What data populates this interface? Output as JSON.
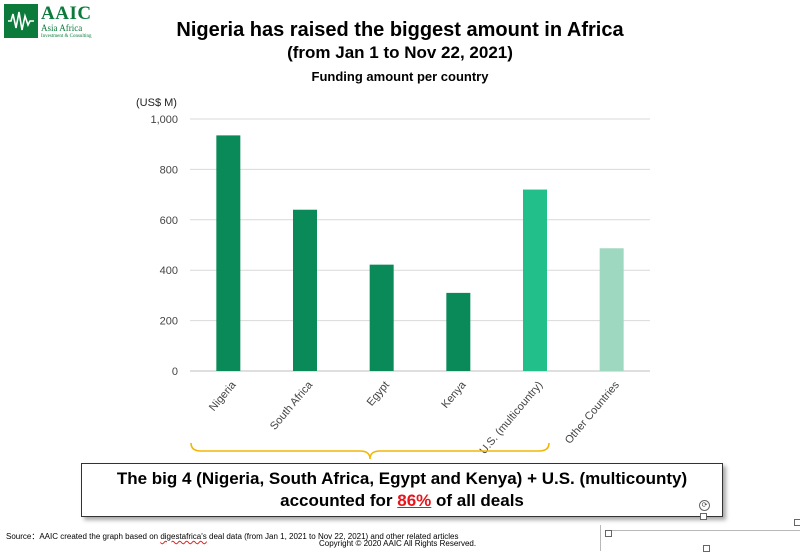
{
  "logo": {
    "brand": "AAIC",
    "subtitle": "Asia Africa",
    "subtitle2": "Investment & Consulting",
    "icon": "waveform-icon",
    "color": "#0b7a3b"
  },
  "chart_data": {
    "type": "bar",
    "title": "Nigeria has raised the biggest amount in Africa",
    "subtitle": "(from Jan 1 to Nov 22, 2021)",
    "subtitle2": "Funding amount per country",
    "ylabel": "(US$ M)",
    "ylim": [
      0,
      1000
    ],
    "yticks": [
      0,
      200,
      400,
      600,
      800,
      1000
    ],
    "ytick_labels": [
      "0",
      "200",
      "400",
      "600",
      "800",
      "1,000"
    ],
    "categories": [
      "Nigeria",
      "South Africa",
      "Egypt",
      "Kenya",
      "U.S. (multicountry)",
      "Other Countries"
    ],
    "values": [
      935,
      640,
      422,
      310,
      720,
      487
    ],
    "colors": [
      "#0a8a58",
      "#0a8a58",
      "#0a8a58",
      "#0a8a58",
      "#22bf8a",
      "#9fd8c0"
    ],
    "grid": true,
    "legend": "none"
  },
  "callout": {
    "line1": "The big 4 (Nigeria, South Africa, Egypt and Kenya) + U.S. (multicounty)",
    "line2_prefix": "accounted for ",
    "highlight": "86%",
    "line2_suffix": " of all deals",
    "highlight_color": "#e8141b",
    "brace_color": "#f2b705"
  },
  "footer": {
    "source_prefix": "Source：AAIC created the graph based on ",
    "source_link": "digestafrica's",
    "source_suffix": " deal data (from Jan 1, 2021 to Nov 22, 2021) and other related articles",
    "copyright": "Copyright © 2020 AAIC All Rights Reserved."
  }
}
